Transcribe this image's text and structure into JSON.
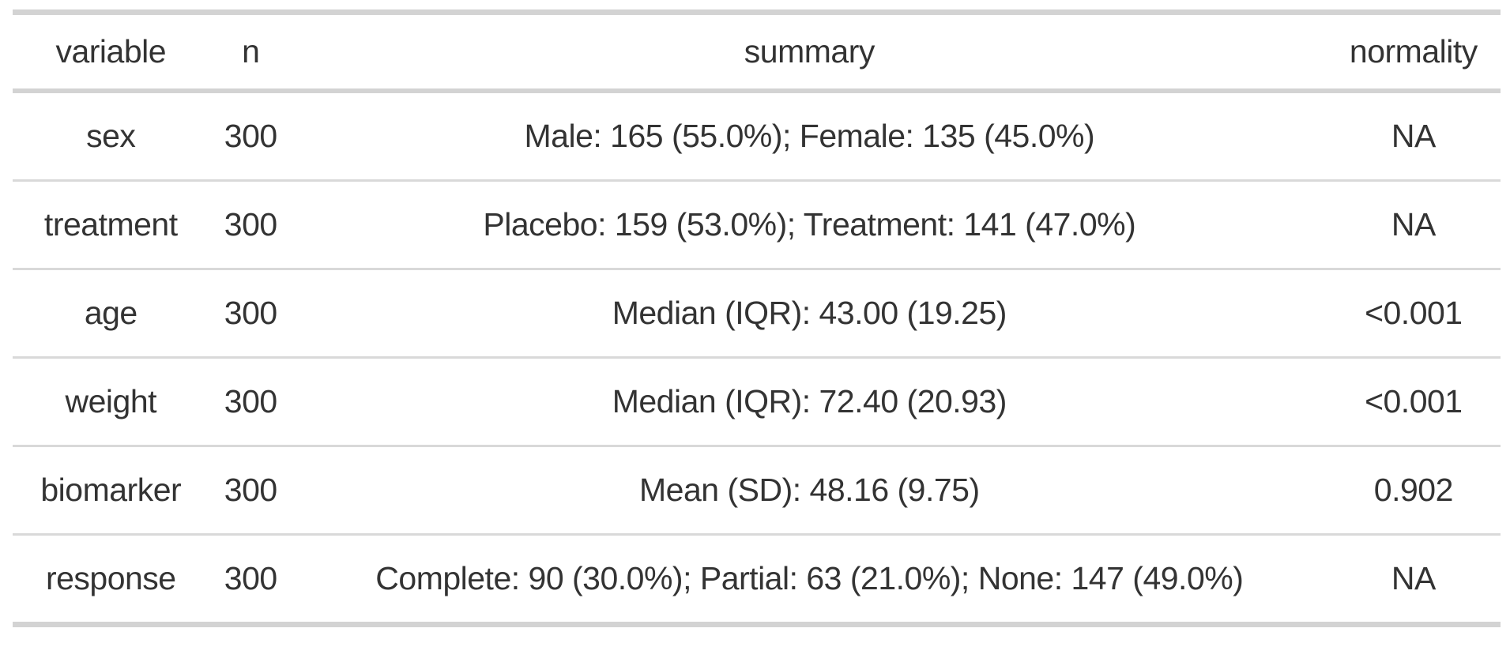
{
  "chart_data": {
    "type": "table",
    "columns": [
      "variable",
      "n",
      "summary",
      "normality"
    ],
    "rows": [
      {
        "variable": "sex",
        "n": "300",
        "summary": "Male: 165 (55.0%); Female: 135 (45.0%)",
        "normality": "NA"
      },
      {
        "variable": "treatment",
        "n": "300",
        "summary": "Placebo: 159 (53.0%); Treatment: 141 (47.0%)",
        "normality": "NA"
      },
      {
        "variable": "age",
        "n": "300",
        "summary": "Median (IQR): 43.00 (19.25)",
        "normality": "<0.001"
      },
      {
        "variable": "weight",
        "n": "300",
        "summary": "Median (IQR): 72.40 (20.93)",
        "normality": "<0.001"
      },
      {
        "variable": "biomarker",
        "n": "300",
        "summary": "Mean (SD): 48.16 (9.75)",
        "normality": "0.902"
      },
      {
        "variable": "response",
        "n": "300",
        "summary": "Complete: 90 (30.0%); Partial: 63 (21.0%); None: 147 (49.0%)",
        "normality": "NA"
      }
    ],
    "layout": {
      "grid": "horizontal-rules-only",
      "header_weight": "normal",
      "cell_alignment": "center"
    },
    "colors": {
      "border_thick": "#d3d3d3",
      "border_thin": "#d9d9d9",
      "text": "#333333",
      "background": "#ffffff"
    }
  }
}
